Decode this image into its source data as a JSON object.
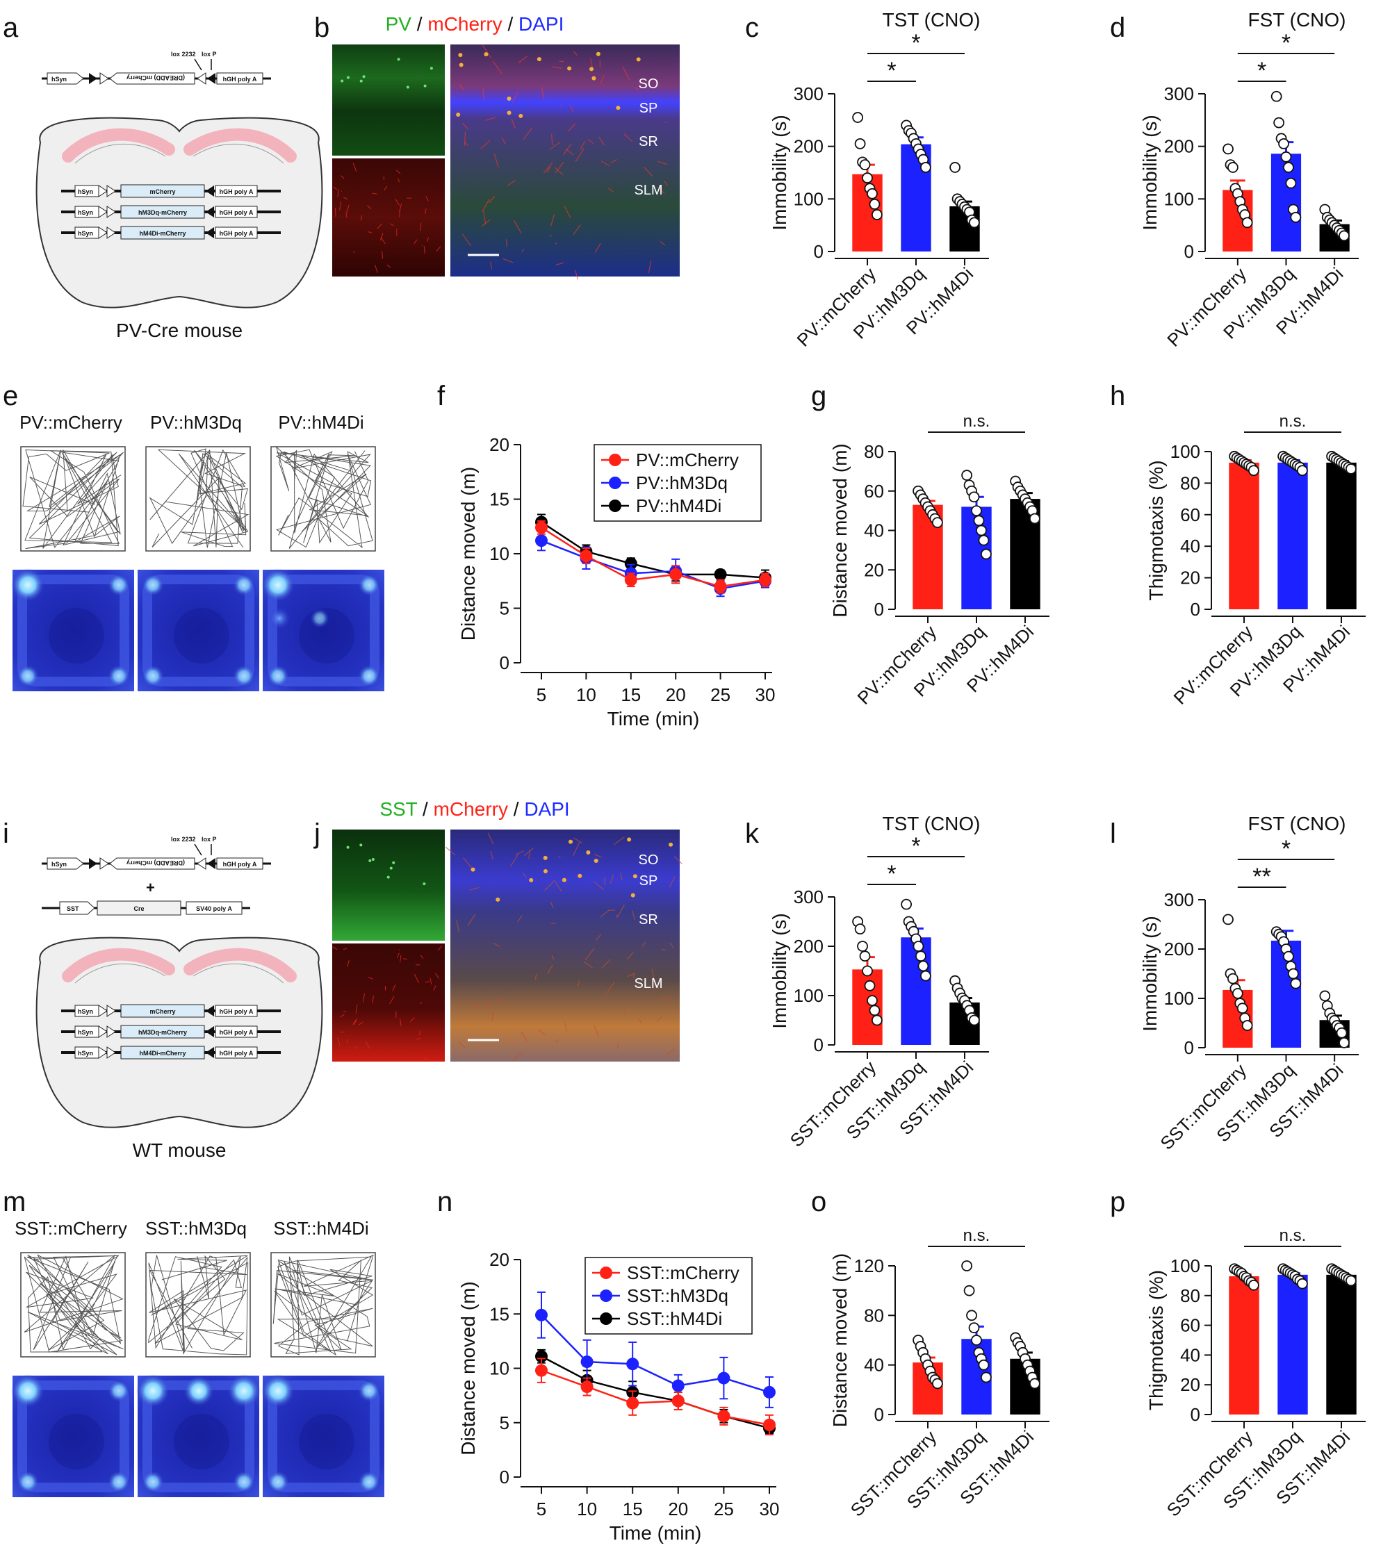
{
  "colors": {
    "mcherry": "#ff2116",
    "hm3dq": "#1b22ff",
    "hm4di": "#000000",
    "pv_green": "#21b021",
    "dapi_blue": "#1e2bff",
    "heat_base": "#2c38c8",
    "heat_hot": "#8ee0ff"
  },
  "panel_labels": [
    "a",
    "b",
    "c",
    "d",
    "e",
    "f",
    "g",
    "h",
    "i",
    "j",
    "k",
    "l",
    "m",
    "n",
    "o",
    "p"
  ],
  "schematics": {
    "a": {
      "mouse_label": "PV-Cre mouse",
      "top_construct": {
        "promoter": "hSyn",
        "insert": "(DREADD) mCherry",
        "polyA": "hGH poly A",
        "lox1": "lox 2232",
        "lox2": "lox P"
      },
      "constructs": [
        {
          "promoter": "hSyn",
          "insert": "mCherry",
          "polyA": "hGH poly A"
        },
        {
          "promoter": "hSyn",
          "insert": "hM3Dq-mCherry",
          "polyA": "hGH poly A"
        },
        {
          "promoter": "hSyn",
          "insert": "hM4Di-mCherry",
          "polyA": "hGH poly A"
        }
      ]
    },
    "i": {
      "mouse_label": "WT mouse",
      "top_construct": {
        "promoter": "hSyn",
        "insert": "(DREADD) mCherry",
        "polyA": "hGH poly A",
        "lox1": "lox 2232",
        "lox2": "lox P"
      },
      "plus": "+",
      "cre_construct": {
        "promoter": "SST",
        "insert": "Cre",
        "polyA": "SV40 poly A"
      },
      "constructs": [
        {
          "promoter": "hSyn",
          "insert": "mCherry",
          "polyA": "hGH poly A"
        },
        {
          "promoter": "hSyn",
          "insert": "hM3Dq-mCherry",
          "polyA": "hGH poly A"
        },
        {
          "promoter": "hSyn",
          "insert": "hM4Di-mCherry",
          "polyA": "hGH poly A"
        }
      ]
    }
  },
  "micrographs": {
    "b": {
      "title_parts": [
        "PV",
        " / ",
        "mCherry",
        " / ",
        "DAPI"
      ],
      "regions": [
        "SO",
        "SP",
        "SR",
        "SLM"
      ]
    },
    "j": {
      "title_parts": [
        "SST",
        " / ",
        "mCherry",
        " / ",
        "DAPI"
      ],
      "regions": [
        "SO",
        "SP",
        "SR",
        "SLM"
      ]
    }
  },
  "open_field": {
    "e": {
      "labels": [
        "PV::mCherry",
        "PV::hM3Dq",
        "PV::hM4Di"
      ]
    },
    "m": {
      "labels": [
        "SST::mCherry",
        "SST::hM3Dq",
        "SST::hM4Di"
      ]
    }
  },
  "chart_data": [
    {
      "panel": "c",
      "type": "bar",
      "title": "TST (CNO)",
      "ylabel": "Immobility (s)",
      "ylim": [
        0,
        300
      ],
      "yticks": [
        0,
        100,
        200,
        300
      ],
      "categories": [
        "PV::mCherry",
        "PV::hM3Dq",
        "PV::hM4Di"
      ],
      "values": [
        147,
        204,
        86
      ],
      "errors": [
        18,
        13,
        9
      ],
      "points": [
        [
          255,
          205,
          170,
          165,
          140,
          120,
          110,
          90,
          70
        ],
        [
          240,
          230,
          225,
          215,
          205,
          195,
          185,
          175,
          160
        ],
        [
          160,
          100,
          95,
          90,
          85,
          80,
          75,
          60,
          55
        ]
      ],
      "significance": [
        {
          "from": 0,
          "to": 1,
          "label": "*"
        },
        {
          "from": 0,
          "to": 2,
          "label": "*"
        }
      ]
    },
    {
      "panel": "d",
      "type": "bar",
      "title": "FST (CNO)",
      "ylabel": "Immobility (s)",
      "ylim": [
        0,
        300
      ],
      "yticks": [
        0,
        100,
        200,
        300
      ],
      "categories": [
        "PV::mCherry",
        "PV::hM3Dq",
        "PV::hM4Di"
      ],
      "values": [
        117,
        186,
        52
      ],
      "errors": [
        18,
        22,
        7
      ],
      "points": [
        [
          195,
          165,
          160,
          120,
          110,
          95,
          80,
          70,
          55
        ],
        [
          295,
          245,
          215,
          205,
          180,
          160,
          130,
          80,
          65
        ],
        [
          80,
          65,
          60,
          55,
          50,
          45,
          40,
          35,
          30
        ]
      ],
      "significance": [
        {
          "from": 0,
          "to": 1,
          "label": "*"
        },
        {
          "from": 0,
          "to": 2,
          "label": "*"
        }
      ]
    },
    {
      "panel": "f",
      "type": "line",
      "xlabel": "Time (min)",
      "ylabel": "Distance moved (m)",
      "xlim": [
        5,
        30
      ],
      "ylim": [
        0,
        20
      ],
      "x": [
        5,
        10,
        15,
        20,
        25,
        30
      ],
      "xticks": [
        5,
        10,
        15,
        20,
        25,
        30
      ],
      "yticks": [
        0,
        5,
        10,
        15,
        20
      ],
      "series": [
        {
          "name": "PV::mCherry",
          "values": [
            12.4,
            9.8,
            7.6,
            8.1,
            7.0,
            7.6
          ],
          "errors": [
            0.6,
            0.7,
            0.6,
            0.8,
            0.6,
            0.6
          ]
        },
        {
          "name": "PV::hM3Dq",
          "values": [
            11.2,
            9.6,
            8.2,
            8.4,
            6.8,
            7.5
          ],
          "errors": [
            0.9,
            1.0,
            0.8,
            1.1,
            0.7,
            0.6
          ]
        },
        {
          "name": "PV::hM4Di",
          "values": [
            12.9,
            10.2,
            9.1,
            8.1,
            8.1,
            7.8
          ],
          "errors": [
            0.7,
            0.6,
            0.5,
            0.6,
            0.4,
            0.7
          ]
        }
      ]
    },
    {
      "panel": "g",
      "type": "bar",
      "ylabel": "Distance moved (m)",
      "ylim": [
        0,
        80
      ],
      "yticks": [
        0,
        20,
        40,
        60,
        80
      ],
      "categories": [
        "PV::mCherry",
        "PV::hM3Dq",
        "PV::hM4Di"
      ],
      "values": [
        53,
        52,
        56
      ],
      "errors": [
        2,
        5,
        3
      ],
      "points": [
        [
          60,
          58,
          56,
          54,
          52,
          50,
          48,
          46,
          44
        ],
        [
          68,
          63,
          60,
          57,
          50,
          45,
          40,
          35,
          28
        ],
        [
          65,
          62,
          60,
          58,
          56,
          54,
          52,
          50,
          46
        ]
      ],
      "significance": [
        {
          "from": 0,
          "to": 2,
          "label": "n.s."
        }
      ]
    },
    {
      "panel": "h",
      "type": "bar",
      "ylabel": "Thigmotaxis (%)",
      "ylim": [
        0,
        100
      ],
      "yticks": [
        0,
        20,
        40,
        60,
        80,
        100
      ],
      "categories": [
        "PV::mCherry",
        "PV::hM3Dq",
        "PV::hM4Di"
      ],
      "values": [
        93,
        93,
        93
      ],
      "errors": [
        1.5,
        1.5,
        1
      ],
      "points": [
        [
          97,
          96,
          95,
          94,
          93,
          92,
          91,
          90,
          88
        ],
        [
          97,
          96,
          95,
          94,
          93,
          92,
          91,
          90,
          88
        ],
        [
          97,
          96,
          95,
          94,
          93,
          92,
          91,
          90,
          89
        ]
      ],
      "significance": [
        {
          "from": 0,
          "to": 2,
          "label": "n.s."
        }
      ]
    },
    {
      "panel": "k",
      "type": "bar",
      "title": "TST (CNO)",
      "ylabel": "Immobility (s)",
      "ylim": [
        0,
        300
      ],
      "yticks": [
        0,
        100,
        200,
        300
      ],
      "categories": [
        "SST::mCherry",
        "SST::hM3Dq",
        "SST::hM4Di"
      ],
      "values": [
        153,
        218,
        86
      ],
      "errors": [
        25,
        18,
        9
      ],
      "points": [
        [
          250,
          235,
          200,
          180,
          150,
          120,
          90,
          70,
          50
        ],
        [
          285,
          250,
          240,
          230,
          215,
          200,
          180,
          160,
          140
        ],
        [
          130,
          115,
          105,
          95,
          90,
          80,
          70,
          55,
          50
        ]
      ],
      "significance": [
        {
          "from": 0,
          "to": 1,
          "label": "*"
        },
        {
          "from": 0,
          "to": 2,
          "label": "*"
        }
      ]
    },
    {
      "panel": "l",
      "type": "bar",
      "title": "FST (CNO)",
      "ylabel": "Immobility (s)",
      "ylim": [
        0,
        300
      ],
      "yticks": [
        0,
        100,
        200,
        300
      ],
      "categories": [
        "SST::mCherry",
        "SST::hM3Dq",
        "SST::hM4Di"
      ],
      "values": [
        117,
        217,
        56
      ],
      "errors": [
        20,
        20,
        9
      ],
      "points": [
        [
          260,
          150,
          140,
          120,
          110,
          90,
          80,
          60,
          45
        ],
        [
          235,
          230,
          225,
          215,
          200,
          185,
          165,
          150,
          130
        ],
        [
          105,
          85,
          70,
          60,
          55,
          45,
          40,
          30,
          10
        ]
      ],
      "significance": [
        {
          "from": 0,
          "to": 1,
          "label": "**"
        },
        {
          "from": 0,
          "to": 2,
          "label": "*"
        }
      ]
    },
    {
      "panel": "n",
      "type": "line",
      "xlabel": "Time (min)",
      "ylabel": "Distance moved (m)",
      "xlim": [
        5,
        30
      ],
      "ylim": [
        0,
        20
      ],
      "x": [
        5,
        10,
        15,
        20,
        25,
        30
      ],
      "xticks": [
        5,
        10,
        15,
        20,
        25,
        30
      ],
      "yticks": [
        0,
        5,
        10,
        15,
        20
      ],
      "series": [
        {
          "name": "SST::mCherry",
          "values": [
            9.8,
            8.3,
            6.8,
            7.0,
            5.6,
            4.8
          ],
          "errors": [
            1.1,
            0.8,
            1.1,
            0.8,
            0.8,
            0.9
          ]
        },
        {
          "name": "SST::hM3Dq",
          "values": [
            14.9,
            10.6,
            10.4,
            8.4,
            9.1,
            7.8
          ],
          "errors": [
            2.1,
            2.0,
            2.0,
            1.0,
            1.9,
            1.4
          ]
        },
        {
          "name": "SST::hM4Di",
          "values": [
            11.1,
            8.9,
            7.8,
            7.0,
            5.6,
            4.5
          ],
          "errors": [
            0.6,
            0.9,
            1.0,
            0.8,
            0.6,
            0.5
          ]
        }
      ]
    },
    {
      "panel": "o",
      "type": "bar",
      "ylabel": "Distance moved (m)",
      "ylim": [
        0,
        120
      ],
      "yticks": [
        0,
        40,
        80,
        120
      ],
      "categories": [
        "SST::mCherry",
        "SST::hM3Dq",
        "SST::hM4Di"
      ],
      "values": [
        42,
        61,
        45
      ],
      "errors": [
        4,
        10,
        5
      ],
      "points": [
        [
          60,
          55,
          50,
          45,
          40,
          35,
          30,
          28,
          25
        ],
        [
          120,
          100,
          80,
          70,
          60,
          50,
          45,
          40,
          30
        ],
        [
          62,
          58,
          55,
          50,
          45,
          40,
          35,
          30,
          25
        ]
      ],
      "significance": [
        {
          "from": 0,
          "to": 2,
          "label": "n.s."
        }
      ]
    },
    {
      "panel": "p",
      "type": "bar",
      "ylabel": "Thigmotaxis (%)",
      "ylim": [
        0,
        100
      ],
      "yticks": [
        0,
        20,
        40,
        60,
        80,
        100
      ],
      "categories": [
        "SST::mCherry",
        "SST::hM3Dq",
        "SST::hM4Di"
      ],
      "values": [
        93,
        94,
        94
      ],
      "errors": [
        1.2,
        1,
        1
      ],
      "points": [
        [
          98,
          97,
          96,
          95,
          93,
          92,
          90,
          89,
          87
        ],
        [
          98,
          97,
          96,
          95,
          94,
          93,
          91,
          90,
          88
        ],
        [
          98,
          97,
          96,
          95,
          94,
          93,
          92,
          91,
          90
        ]
      ],
      "significance": [
        {
          "from": 0,
          "to": 2,
          "label": "n.s."
        }
      ]
    }
  ]
}
